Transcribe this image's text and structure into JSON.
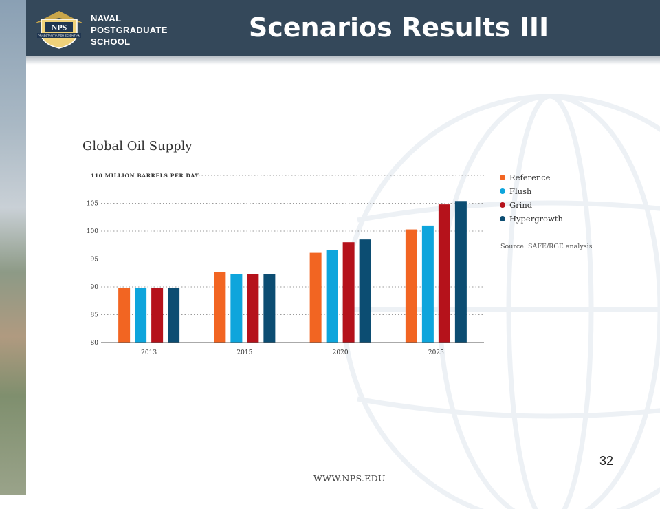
{
  "header": {
    "logo_text": "NPS",
    "logo_motto": "PRAESTANTIA PER SCIENTIAM",
    "school_line1": "NAVAL",
    "school_line2": "POSTGRADUATE",
    "school_line3": "SCHOOL"
  },
  "slide": {
    "title": "Scenarios Results III",
    "page_number": "32",
    "footer_url": "WWW.NPS.EDU"
  },
  "colors": {
    "header_bg": "#34485a",
    "reference": "#f26522",
    "flush": "#0ea5dc",
    "grind": "#b5121b",
    "hypergrowth": "#0c4d72"
  },
  "chart_data": {
    "type": "bar",
    "title": "Global Oil Supply",
    "ylabel": "110 MILLION BARRELS PER DAY",
    "ylim": [
      80,
      110
    ],
    "yticks": [
      80,
      85,
      90,
      95,
      100,
      105
    ],
    "categories": [
      "2013",
      "2015",
      "2020",
      "2025"
    ],
    "series": [
      {
        "name": "Reference",
        "color": "#f26522",
        "values": [
          89.8,
          92.6,
          96.1,
          100.3
        ]
      },
      {
        "name": "Flush",
        "color": "#0ea5dc",
        "values": [
          89.8,
          92.3,
          96.6,
          101.0
        ]
      },
      {
        "name": "Grind",
        "color": "#b5121b",
        "values": [
          89.8,
          92.3,
          98.0,
          104.8
        ]
      },
      {
        "name": "Hypergrowth",
        "color": "#0c4d72",
        "values": [
          89.8,
          92.3,
          98.5,
          105.4
        ]
      }
    ],
    "grid": true,
    "legend_position": "right",
    "source": "Source: SAFE/RGE analysis"
  }
}
